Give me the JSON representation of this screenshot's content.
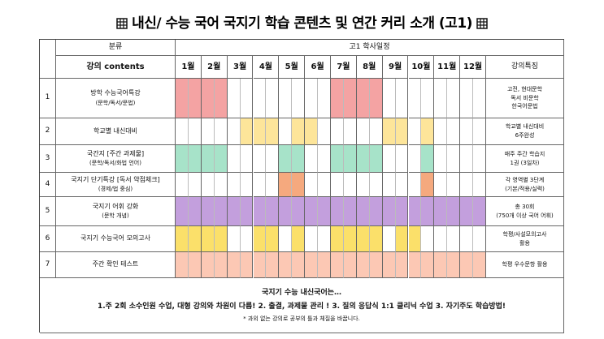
{
  "title": "내신/ 수능 국어  국지기 학습 콘텐츠 및 연간 커리 소개 (고1)",
  "header": {
    "category": "분류",
    "schedule": "고1 학사일정",
    "contents": "강의 contents",
    "months": [
      "1월",
      "2월",
      "3월",
      "4월",
      "5월",
      "6월",
      "7월",
      "8월",
      "9월",
      "10월",
      "11월",
      "12월"
    ],
    "features": "강의특징"
  },
  "palette": {
    "P": "#f4a3a3",
    "Y": "#fde59a",
    "G": "#a7e3c9",
    "O": "#f5a97e",
    "V": "#c39fdd",
    "M": "#fbe06a",
    "S": "#fcc8b4"
  },
  "rows": [
    {
      "no": "1",
      "contents": [
        "방학 수능국어특강",
        "(문학/독서/문법)"
      ],
      "features": [
        "고전, 현대문학",
        "독서 비문학",
        "한국어문법"
      ],
      "schedule": "PPPP........PPPP........"
    },
    {
      "no": "2",
      "contents": [
        "학교별 내신대비"
      ],
      "features": [
        "학교별 내신대비",
        "6주완성"
      ],
      "schedule": ".....YYY.YY.....YY.Y...."
    },
    {
      "no": "3",
      "contents": [
        "국간지 [주간 과제물]",
        "(문학/독서/화법 언어)"
      ],
      "features": [
        "매주 주간 학습지",
        "1권 (3일차)"
      ],
      "schedule": "GGGG....GG..GGGG...G...."
    },
    {
      "no": "4",
      "contents": [
        "국지기 단기특강 [독서 약점체크]",
        "(경제/법 중심)"
      ],
      "features": [
        "각 영역별 3단계",
        "(기본/적용/실력)"
      ],
      "schedule": "........OO.........O...."
    },
    {
      "no": "5",
      "contents": [
        "국지기 어휘 강화",
        "(문학 개념)"
      ],
      "features": [
        "총 30회",
        "(750개 이상 국어 어휘)"
      ],
      "schedule": "VVVVVVVVVVVVVVVVVVVVVVVV"
    },
    {
      "no": "6",
      "contents": [
        "국지기 수능국어 모의고사"
      ],
      "features": [
        "학평/사설모의고사",
        "활용"
      ],
      "schedule": "MMMM..MM.M..MMMM.MM....."
    },
    {
      "no": "7",
      "contents": [
        "주간 확인 테스트"
      ],
      "features": [
        "학평 우수문항 활용"
      ],
      "schedule": "SSSSSSSSSSSSSSSSSSSSSSSS"
    }
  ],
  "footer": {
    "heading": "국지기 수능 내신국어는…",
    "points": "1.주 2회 소수인원 수업, 대형 강의와 차원이 다름!  2. 출결, 과제물 관리 !  3. 질의 응답식 1:1 클리닉 수업  3. 자기주도 학습방법!",
    "note": "* 과외 없는 강의로 공부의 틀과 체질을 바꿉니다."
  }
}
